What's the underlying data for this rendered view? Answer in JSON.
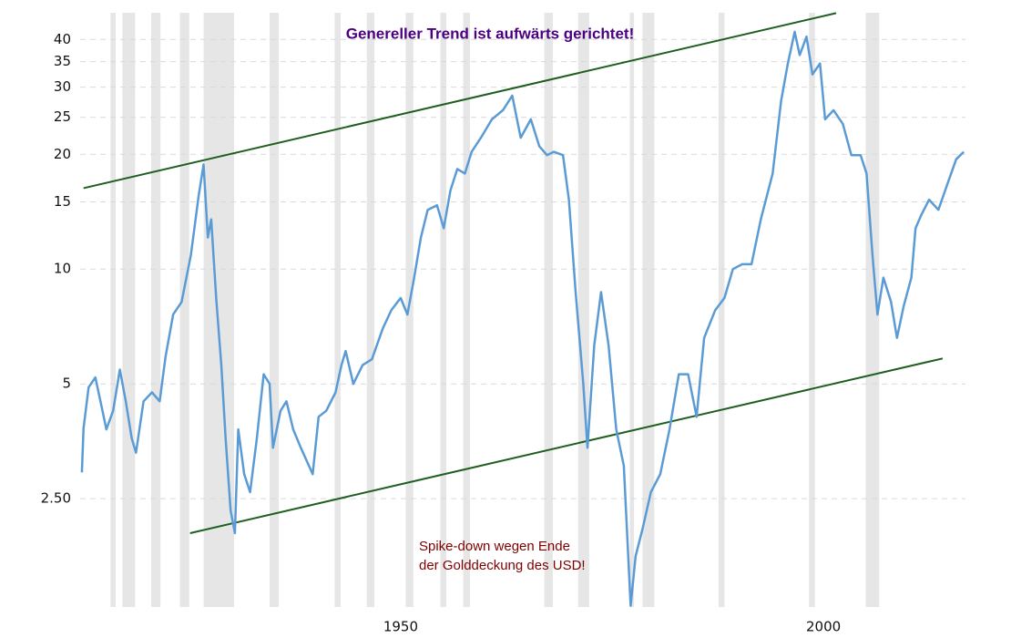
{
  "chart_data": {
    "type": "line",
    "annotations": [
      "Genereller Trend ist aufwärts gerichtet!",
      "Spike-down wegen Ende",
      "der Golddeckung des USD!"
    ],
    "log_y": true,
    "grid": true,
    "xlim": [
      1915,
      2019.7
    ],
    "xticks": [
      1950,
      2000
    ],
    "ylim": [
      1.3,
      47
    ],
    "yticks": [
      {
        "value": 2.5,
        "label": "2.50"
      },
      5,
      10,
      15,
      20,
      25,
      30,
      35,
      40
    ],
    "recession_color": "#e6e6e6",
    "recessions": [
      [
        1918.6,
        1919.2
      ],
      [
        1920.0,
        1921.5
      ],
      [
        1923.4,
        1924.5
      ],
      [
        1926.8,
        1927.9
      ],
      [
        1929.6,
        1933.2
      ],
      [
        1937.4,
        1938.5
      ],
      [
        1945.1,
        1945.8
      ],
      [
        1948.9,
        1949.8
      ],
      [
        1953.5,
        1954.4
      ],
      [
        1957.6,
        1958.3
      ],
      [
        1960.3,
        1961.1
      ],
      [
        1969.9,
        1970.9
      ],
      [
        1973.9,
        1975.2
      ],
      [
        1980.0,
        1980.5
      ],
      [
        1981.5,
        1982.9
      ],
      [
        1990.5,
        1991.2
      ],
      [
        2001.2,
        2001.9
      ],
      [
        2007.9,
        2009.5
      ]
    ],
    "trend_color": "#1e5e1e",
    "trend_lines": [
      {
        "x": [
          1915.4,
          2004.4
        ],
        "values": [
          16.3,
          46.9
        ]
      },
      {
        "x": [
          1928.0,
          2017.0
        ],
        "values": [
          2.03,
          5.83
        ]
      }
    ],
    "series": [
      {
        "color": "#5b9bd5",
        "x": [
          1915.2,
          1915.4,
          1916,
          1916.8,
          1917.4,
          1918.1,
          1918.9,
          1919.7,
          1920.4,
          1921.1,
          1921.6,
          1922.5,
          1923.5,
          1924.4,
          1925.1,
          1926,
          1927,
          1928.1,
          1929,
          1929.6,
          1930.1,
          1930.5,
          1931.1,
          1931.7,
          1932.2,
          1932.8,
          1933.3,
          1933.7,
          1934.4,
          1935.1,
          1935.9,
          1936.7,
          1937.4,
          1937.8,
          1938.7,
          1939.4,
          1940.2,
          1941.1,
          1942.5,
          1943.2,
          1944.1,
          1945.2,
          1945.9,
          1946.4,
          1947.3,
          1948.4,
          1949.5,
          1950.8,
          1951.8,
          1952.9,
          1953.7,
          1954.5,
          1955.3,
          1956.1,
          1957.2,
          1958,
          1958.8,
          1959.6,
          1960.5,
          1961.3,
          1962.4,
          1963.7,
          1965,
          1966.1,
          1967.1,
          1968.3,
          1969.3,
          1970.2,
          1971,
          1972.1,
          1972.8,
          1973.6,
          1974.5,
          1975,
          1975.8,
          1976.6,
          1977.5,
          1978.4,
          1979.3,
          1980.1,
          1980.7,
          1981.5,
          1982.5,
          1983.6,
          1984.7,
          1985.8,
          1986.9,
          1987.9,
          1988.8,
          1990.1,
          1991.2,
          1992.2,
          1993.3,
          1994.4,
          1995.5,
          1996.9,
          1997.9,
          1998.7,
          1999.5,
          2000.1,
          2000.9,
          2001.6,
          2002.5,
          2003.1,
          2004.1,
          2005.2,
          2006.2,
          2007.3,
          2008,
          2008.7,
          2009.3,
          2010,
          2010.9,
          2011.6,
          2012.4,
          2013.3,
          2013.8,
          2014.5,
          2015.4,
          2016.5,
          2017.6,
          2018.6,
          2019.5
        ],
        "values": [
          2.93,
          3.82,
          4.9,
          5.2,
          4.5,
          3.8,
          4.25,
          5.45,
          4.5,
          3.6,
          3.3,
          4.5,
          4.75,
          4.5,
          5.9,
          7.6,
          8.2,
          10.9,
          15.5,
          18.8,
          12.1,
          13.5,
          8.3,
          5.6,
          3.6,
          2.33,
          2.03,
          3.8,
          2.9,
          2.6,
          3.6,
          5.3,
          5.0,
          3.4,
          4.25,
          4.5,
          3.8,
          3.4,
          2.9,
          4.1,
          4.25,
          4.75,
          5.6,
          6.1,
          5.0,
          5.6,
          5.8,
          7.0,
          7.8,
          8.4,
          7.6,
          9.5,
          12.1,
          14.3,
          14.7,
          12.8,
          16.1,
          18.3,
          17.8,
          20.3,
          22.1,
          24.7,
          26.1,
          28.5,
          22.1,
          24.7,
          21.0,
          19.9,
          20.3,
          19.9,
          15.2,
          8.7,
          5.0,
          3.4,
          6.3,
          8.7,
          6.3,
          3.8,
          3.05,
          1.31,
          1.77,
          2.08,
          2.6,
          2.9,
          3.8,
          5.3,
          5.3,
          4.1,
          6.6,
          7.8,
          8.4,
          10.0,
          10.3,
          10.3,
          13.5,
          17.8,
          27.6,
          34.6,
          41.9,
          36.4,
          40.7,
          32.4,
          34.6,
          24.7,
          26.1,
          24,
          19.9,
          19.9,
          17.8,
          10.9,
          7.6,
          9.5,
          8.2,
          6.6,
          8.0,
          9.5,
          12.8,
          13.9,
          15.2,
          14.3,
          16.8,
          19.4,
          20.3
        ]
      }
    ]
  }
}
